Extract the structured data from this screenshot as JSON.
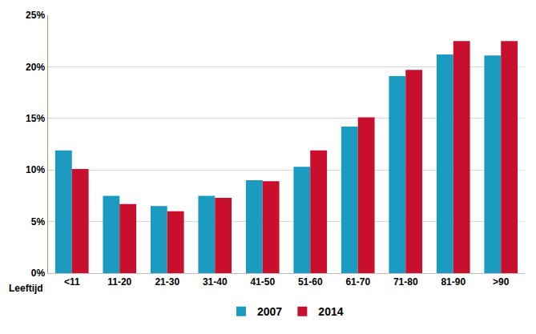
{
  "chart_data": {
    "type": "bar",
    "x_label": "Leeftijd",
    "categories": [
      "<11",
      "11-20",
      "21-30",
      "31-40",
      "41-50",
      "51-60",
      "61-70",
      "71-80",
      "81-90",
      ">90"
    ],
    "series": [
      {
        "name": "2007",
        "color": "#1a9bbf",
        "values": [
          11.9,
          7.5,
          6.5,
          7.5,
          9.0,
          10.3,
          14.2,
          19.1,
          21.2,
          21.1
        ]
      },
      {
        "name": "2014",
        "color": "#c8102e",
        "values": [
          10.1,
          6.7,
          6.0,
          7.3,
          8.9,
          11.9,
          15.1,
          19.7,
          22.5,
          22.5
        ]
      }
    ],
    "ylim": [
      0,
      25
    ],
    "yticks": [
      {
        "value": 0,
        "label": "0%"
      },
      {
        "value": 5,
        "label": "5%"
      },
      {
        "value": 10,
        "label": "10%"
      },
      {
        "value": 15,
        "label": "15%"
      },
      {
        "value": 20,
        "label": "20%"
      },
      {
        "value": 25,
        "label": "25%"
      }
    ],
    "grid": true,
    "legend": "bottom"
  }
}
